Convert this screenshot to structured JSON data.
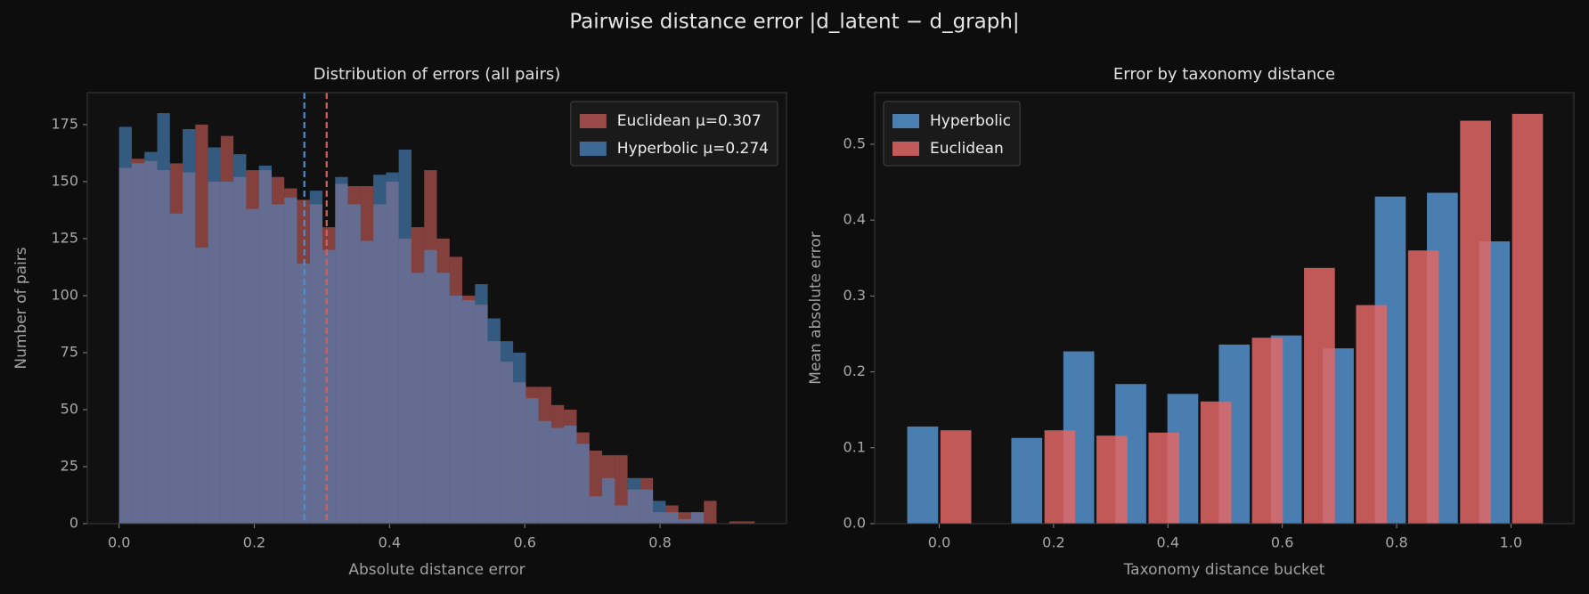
{
  "title": "Pairwise distance error  |d_latent − d_graph|",
  "chart_data": [
    {
      "type": "histogram",
      "title": "Distribution of errors (all pairs)",
      "x_label": "Absolute distance error",
      "y_label": "Number of pairs",
      "bins": [
        0,
        0.0188,
        0.0376,
        0.0564,
        0.0752,
        0.094,
        0.1128,
        0.1316,
        0.1504,
        0.1692,
        0.188,
        0.2068,
        0.2256,
        0.2444,
        0.2632,
        0.282,
        0.3008,
        0.3196,
        0.3384,
        0.3572,
        0.376,
        0.3948,
        0.4136,
        0.4324,
        0.4512,
        0.47,
        0.4888,
        0.5076,
        0.5264,
        0.5452,
        0.564,
        0.5828,
        0.6016,
        0.6204,
        0.6392,
        0.658,
        0.6768,
        0.6956,
        0.7144,
        0.7332,
        0.752,
        0.7708,
        0.7896,
        0.8084,
        0.8272,
        0.846,
        0.8648,
        0.8836,
        0.9024,
        0.9212,
        0.94
      ],
      "series": [
        {
          "name": "Euclidean  μ=0.307",
          "color": "#d2605c",
          "mean": 0.307,
          "values": [
            156,
            160,
            159,
            155,
            158,
            154,
            175,
            150,
            170,
            152,
            155,
            155,
            152,
            147,
            142,
            140,
            130,
            149,
            148,
            148,
            140,
            150,
            125,
            130,
            155,
            125,
            117,
            100,
            96,
            80,
            71,
            62,
            60,
            60,
            52,
            50,
            40,
            32,
            30,
            30,
            15,
            20,
            5,
            8,
            5,
            5,
            10,
            0,
            1,
            1
          ]
        },
        {
          "name": "Hyperbolic  μ=0.274",
          "color": "#4f8cc9",
          "mean": 0.274,
          "values": [
            174,
            158,
            163,
            180,
            136,
            173,
            121,
            165,
            150,
            162,
            138,
            157,
            140,
            143,
            114,
            146,
            120,
            152,
            140,
            124,
            153,
            154,
            164,
            110,
            120,
            110,
            100,
            98,
            105,
            90,
            80,
            75,
            55,
            45,
            42,
            43,
            35,
            12,
            20,
            8,
            20,
            15,
            10,
            5,
            2,
            5,
            0,
            0,
            0,
            0
          ]
        }
      ],
      "xlim": [
        -0.047,
        0.987
      ],
      "ylim": [
        0,
        189
      ],
      "xticks": [
        {
          "value": 0,
          "label": "0.0"
        },
        0.2,
        0.4,
        0.6,
        0.8
      ],
      "yticks": [
        0,
        25,
        50,
        75,
        100,
        125,
        150,
        175
      ],
      "legend": "upper right"
    },
    {
      "type": "bar",
      "title": "Error by taxonomy distance",
      "x_label": "Taxonomy distance bucket",
      "y_label": "Mean absolute error",
      "x": [
        0,
        0.182,
        0.273,
        0.364,
        0.455,
        0.545,
        0.636,
        0.727,
        0.818,
        0.909,
        1.0
      ],
      "series": [
        {
          "name": "Hyperbolic",
          "color": "#5590cc",
          "values": [
            0.128,
            0.113,
            0.227,
            0.184,
            0.171,
            0.236,
            0.248,
            0.231,
            0.431,
            0.436,
            0.372
          ]
        },
        {
          "name": "Euclidean",
          "color": "#e06666",
          "values": [
            0.123,
            0.123,
            0.116,
            0.12,
            0.161,
            0.245,
            0.337,
            0.288,
            0.36,
            0.531,
            0.54
          ]
        }
      ],
      "xlim": [
        -0.113,
        1.11
      ],
      "ylim": [
        0,
        0.568
      ],
      "xticks": [
        {
          "value": 0,
          "label": "0.0"
        },
        0.2,
        0.4,
        0.6,
        0.8,
        {
          "value": 1,
          "label": "1.0"
        }
      ],
      "yticks": [
        {
          "value": 0,
          "label": "0.0"
        },
        0.1,
        0.2,
        0.3,
        0.4,
        0.5
      ],
      "legend": "upper left"
    }
  ]
}
